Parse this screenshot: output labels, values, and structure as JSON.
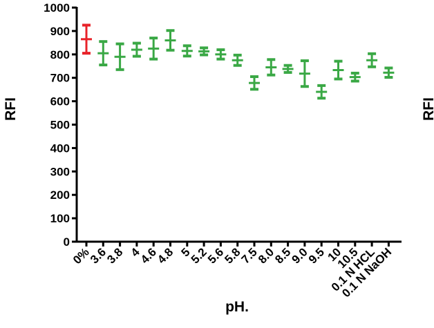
{
  "chart_data": {
    "type": "scatter",
    "title": "",
    "xlabel": "pH.",
    "ylabel": "RFI",
    "ylim": [
      0,
      1000
    ],
    "yticks": [
      0,
      100,
      200,
      300,
      400,
      500,
      600,
      700,
      800,
      900,
      1000
    ],
    "grid": false,
    "colors": {
      "control": "#e8232a",
      "sample": "#3aa845",
      "axis": "#000000"
    },
    "categories": [
      "0%",
      "3.6",
      "3.8",
      "4",
      "4.6",
      "4.8",
      "5",
      "5.2",
      "5.6",
      "5.8",
      "7.5",
      "8.0",
      "8.5",
      "9.0",
      "9.5",
      "10",
      "10.5",
      "0.1 N HCL",
      "0.1 N NaOH"
    ],
    "series": [
      {
        "mean": [
          865,
          805,
          790,
          820,
          825,
          860,
          815,
          813,
          800,
          775,
          678,
          745,
          738,
          718,
          640,
          733,
          703,
          775,
          722
        ],
        "error": [
          60,
          50,
          55,
          28,
          45,
          42,
          22,
          15,
          20,
          22,
          27,
          33,
          15,
          55,
          27,
          38,
          17,
          28,
          20
        ]
      }
    ],
    "partial_right_label": "RFI"
  }
}
